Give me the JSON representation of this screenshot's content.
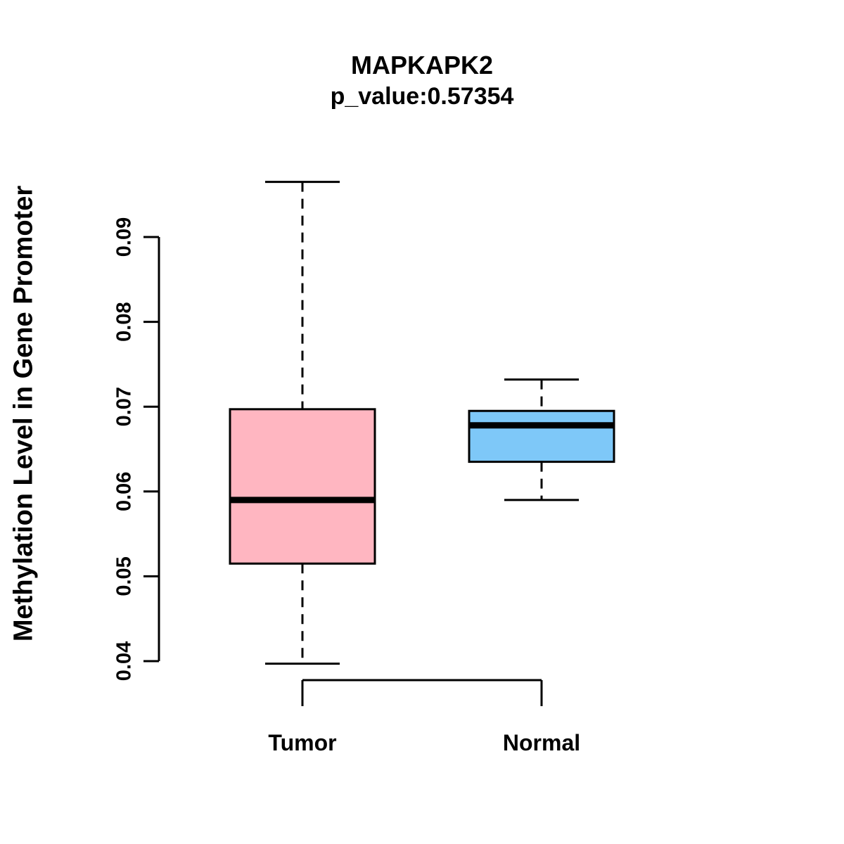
{
  "title": "MAPKAPK2",
  "subtitle": "p_value:0.57354",
  "chart_data": {
    "type": "boxplot",
    "title": "MAPKAPK2",
    "subtitle": "p_value:0.57354",
    "ylabel": "Methylation Level in Gene Promoter",
    "xlabel": "",
    "categories": [
      "Tumor",
      "Normal"
    ],
    "yticks": [
      0.04,
      0.05,
      0.06,
      0.07,
      0.08,
      0.09
    ],
    "ylim": [
      0.0397,
      0.0968
    ],
    "grid": "off",
    "legend": "none",
    "series": [
      {
        "name": "Tumor",
        "color": "#FFB6C1",
        "whisker_low": 0.0397,
        "q1": 0.0515,
        "median": 0.059,
        "q3": 0.0697,
        "whisker_high": 0.0965
      },
      {
        "name": "Normal",
        "color": "#7EC8F8",
        "whisker_low": 0.059,
        "q1": 0.0635,
        "median": 0.0678,
        "q3": 0.0695,
        "whisker_high": 0.0732
      }
    ],
    "stroke_color": "#000000"
  }
}
